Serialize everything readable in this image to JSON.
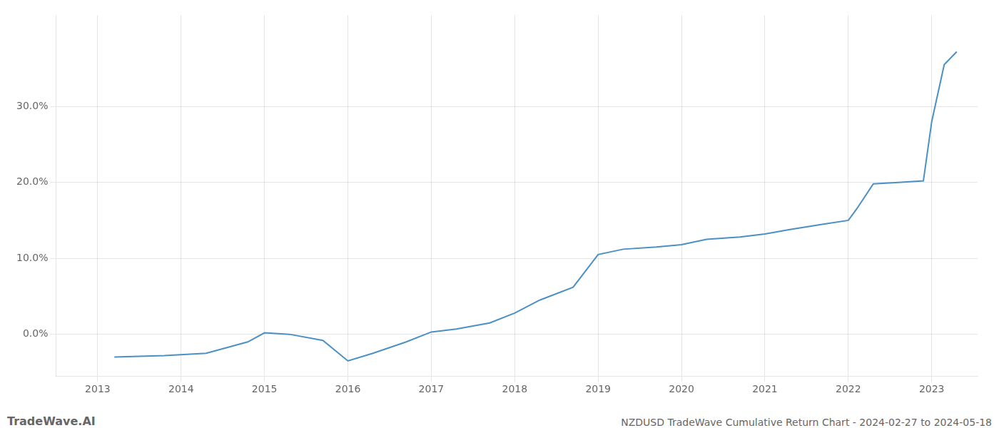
{
  "chart_data": {
    "type": "line",
    "title": "NZDUSD TradeWave Cumulative Return Chart - 2024-02-27 to 2024-05-18",
    "annotations": [
      "TradeWave.AI"
    ],
    "x": [
      2013.2,
      2013.8,
      2014.3,
      2014.8,
      2015.0,
      2015.3,
      2015.7,
      2016.0,
      2016.3,
      2016.7,
      2017.0,
      2017.3,
      2017.7,
      2018.0,
      2018.3,
      2018.7,
      2019.0,
      2019.3,
      2019.7,
      2020.0,
      2020.3,
      2020.7,
      2021.0,
      2021.3,
      2021.7,
      2022.0,
      2022.1,
      2022.3,
      2022.6,
      2022.9,
      2023.0,
      2023.15,
      2023.3
    ],
    "values": [
      -3.0,
      -2.8,
      -2.5,
      -1.0,
      0.2,
      0.0,
      -0.8,
      -3.5,
      -2.5,
      -1.0,
      0.3,
      0.7,
      1.5,
      2.8,
      4.5,
      6.2,
      10.5,
      11.2,
      11.5,
      11.8,
      12.5,
      12.8,
      13.2,
      13.8,
      14.5,
      15.0,
      16.5,
      19.8,
      20.0,
      20.2,
      28.0,
      35.5,
      37.2
    ],
    "color": "#4a90c4",
    "xlim": [
      2012.5,
      2023.55
    ],
    "xticks": [
      2013,
      2014,
      2015,
      2016,
      2017,
      2018,
      2019,
      2020,
      2021,
      2022,
      2023
    ],
    "ylim": [
      -5.5,
      42
    ],
    "yticks": [
      {
        "value": 0.0,
        "label": "0.0%"
      },
      {
        "value": 10.0,
        "label": "10.0%"
      },
      {
        "value": 20.0,
        "label": "20.0%"
      },
      {
        "value": 30.0,
        "label": "30.0%"
      }
    ],
    "grid": true
  }
}
